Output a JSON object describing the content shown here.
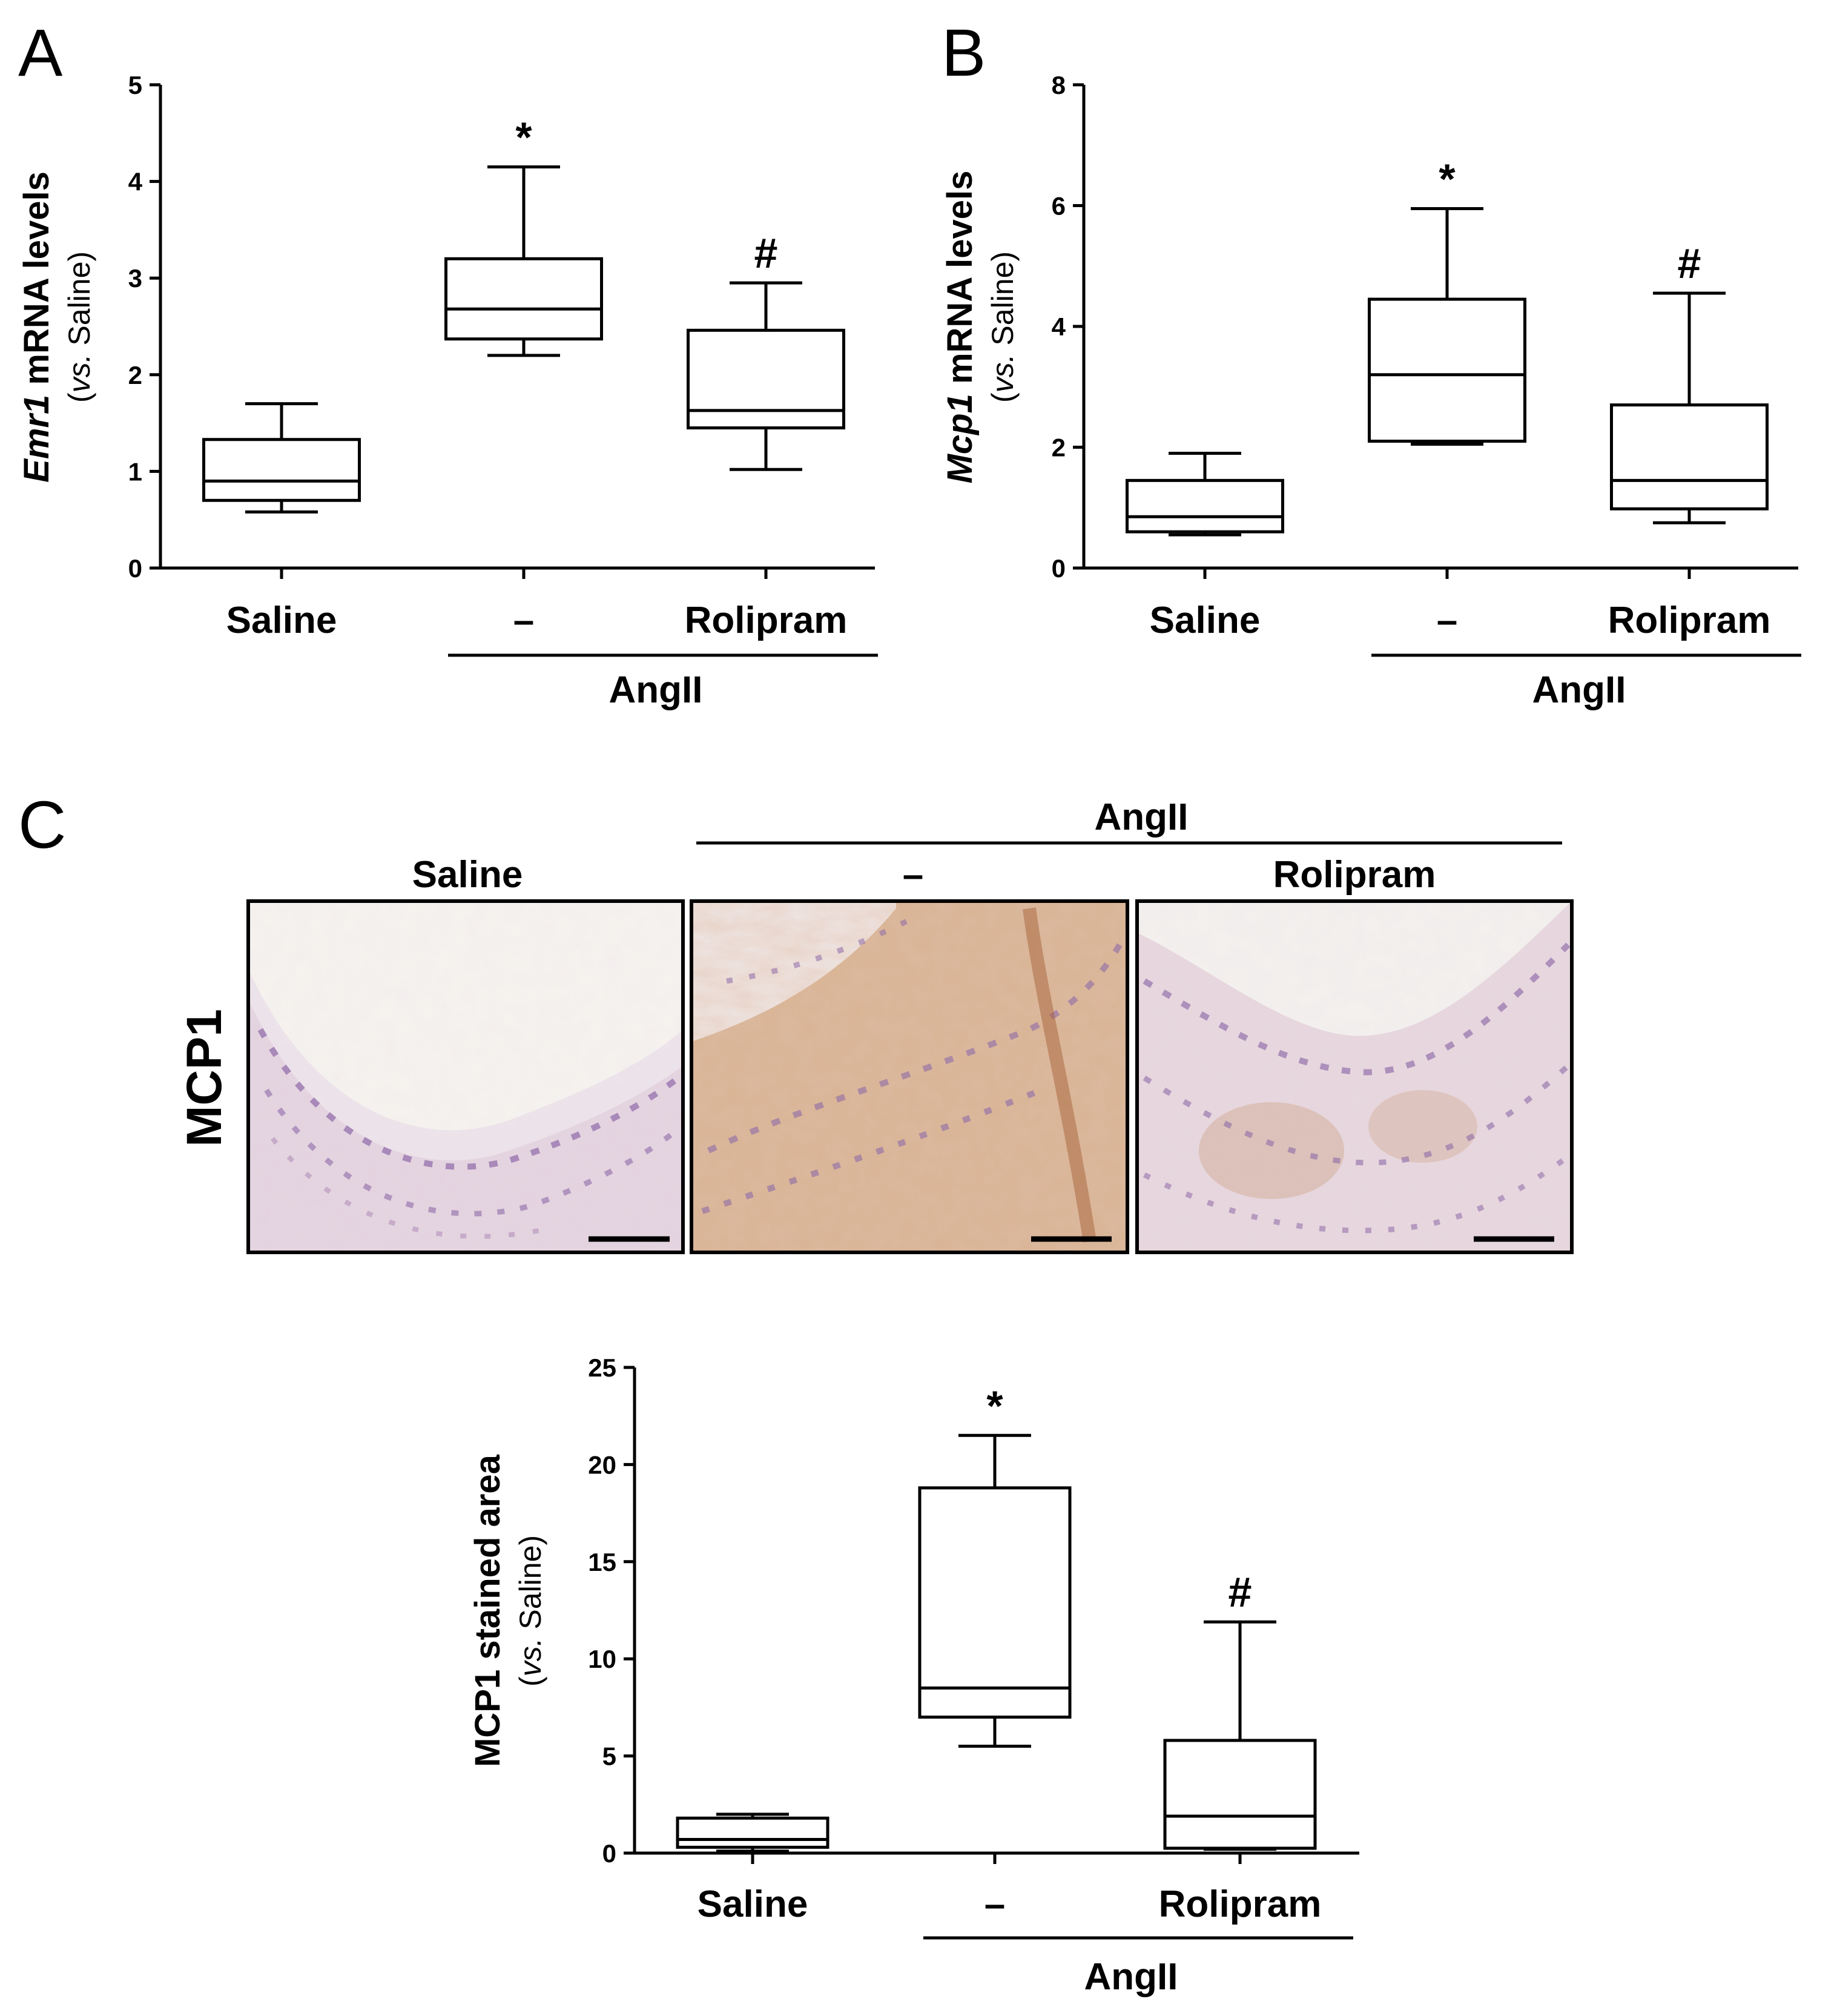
{
  "panels": {
    "A": "A",
    "B": "B",
    "C": "C"
  },
  "group_label": "AngII",
  "chart_data": [
    {
      "id": "A",
      "type": "box",
      "categories": [
        "Saline",
        "–",
        "Rolipram"
      ],
      "ylabel_gene": "Emr1",
      "ylabel_rest": " mRNA levels",
      "ylabel_sub_italic": "vs.",
      "ylabel_sub_rest": " Saline",
      "ylim": [
        0,
        5
      ],
      "yticks": [
        0,
        1,
        2,
        3,
        4,
        5
      ],
      "boxes": [
        {
          "min": 0.58,
          "q1": 0.7,
          "median": 0.9,
          "q3": 1.33,
          "max": 1.7,
          "sig": ""
        },
        {
          "min": 2.2,
          "q1": 2.37,
          "median": 2.68,
          "q3": 3.2,
          "max": 4.15,
          "sig": "*"
        },
        {
          "min": 1.02,
          "q1": 1.45,
          "median": 1.63,
          "q3": 2.46,
          "max": 2.95,
          "sig": "#"
        }
      ]
    },
    {
      "id": "B",
      "type": "box",
      "categories": [
        "Saline",
        "–",
        "Rolipram"
      ],
      "ylabel_gene": "Mcp1",
      "ylabel_rest": " mRNA levels",
      "ylabel_sub_italic": "vs.",
      "ylabel_sub_rest": " Saline",
      "ylim": [
        0,
        8
      ],
      "yticks": [
        0,
        2,
        4,
        6,
        8
      ],
      "boxes": [
        {
          "min": 0.55,
          "q1": 0.6,
          "median": 0.85,
          "q3": 1.45,
          "max": 1.9,
          "sig": ""
        },
        {
          "min": 2.05,
          "q1": 2.1,
          "median": 3.2,
          "q3": 4.45,
          "max": 5.95,
          "sig": "*"
        },
        {
          "min": 0.75,
          "q1": 0.98,
          "median": 1.45,
          "q3": 2.7,
          "max": 4.55,
          "sig": "#"
        }
      ]
    },
    {
      "id": "C",
      "type": "box",
      "categories": [
        "Saline",
        "–",
        "Rolipram"
      ],
      "ylabel_gene": "MCP1 stained area",
      "ylabel_rest": "",
      "ylabel_sub_italic": "vs.",
      "ylabel_sub_rest": " Saline",
      "ylim": [
        0,
        25
      ],
      "yticks": [
        0,
        5,
        10,
        15,
        20,
        25
      ],
      "boxes": [
        {
          "min": 0.1,
          "q1": 0.3,
          "median": 0.7,
          "q3": 1.8,
          "max": 2.0,
          "sig": ""
        },
        {
          "min": 5.5,
          "q1": 7.0,
          "median": 8.5,
          "q3": 18.8,
          "max": 21.5,
          "sig": "*"
        },
        {
          "min": 0.2,
          "q1": 0.25,
          "median": 1.9,
          "q3": 5.8,
          "max": 11.9,
          "sig": "#"
        }
      ]
    }
  ],
  "micrographs": {
    "row_label": "MCP1",
    "columns": [
      "Saline",
      "–",
      "Rolipram"
    ],
    "group_label": "AngII"
  },
  "colors": {
    "stain_brown": "#b9784a",
    "nuclei_purple": "#8e6aa8",
    "background": "#f3ede8"
  }
}
